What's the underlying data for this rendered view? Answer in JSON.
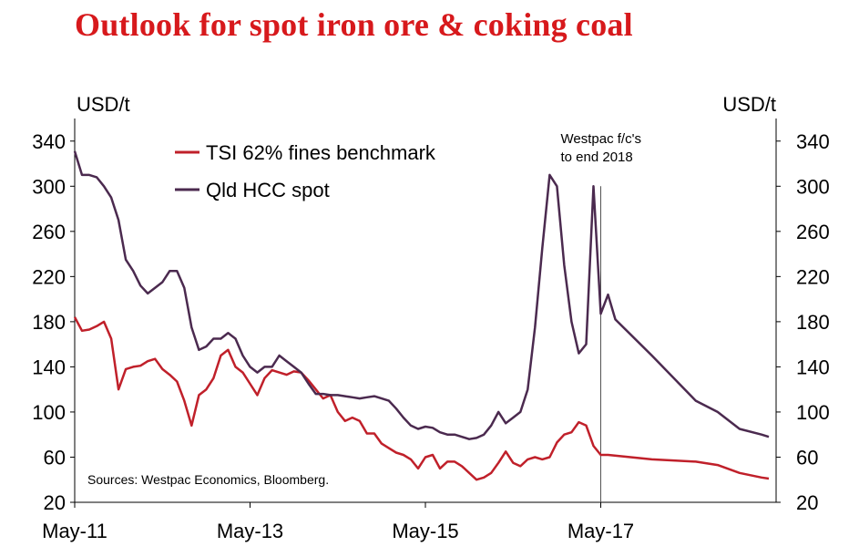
{
  "title": "Outlook for spot iron ore & coking coal",
  "chart_data": {
    "type": "line",
    "title": "Outlook for spot iron ore & coking coal",
    "y_left_label": "USD/t",
    "y_right_label": "USD/t",
    "ylim": [
      20,
      360
    ],
    "yticks": [
      "340",
      "300",
      "260",
      "220",
      "180",
      "140",
      "100",
      "60",
      "20"
    ],
    "xlim": [
      "2011-05",
      "2019-05"
    ],
    "xticks": [
      "May-11",
      "May-13",
      "May-15",
      "May-17"
    ],
    "grid": false,
    "legend_position": "top-left",
    "annotation": {
      "text_lines": [
        "Westpac f/c's",
        "to end 2018"
      ],
      "x": "2017-05"
    },
    "source": "Sources: Westpac Economics, Bloomberg.",
    "series": [
      {
        "name": "TSI 62% fines benchmark",
        "color": "#c0202a",
        "points": [
          [
            "2011-05",
            184
          ],
          [
            "2011-06",
            172
          ],
          [
            "2011-07",
            173
          ],
          [
            "2011-08",
            176
          ],
          [
            "2011-09",
            180
          ],
          [
            "2011-10",
            165
          ],
          [
            "2011-11",
            120
          ],
          [
            "2011-12",
            138
          ],
          [
            "2012-01",
            140
          ],
          [
            "2012-02",
            141
          ],
          [
            "2012-03",
            145
          ],
          [
            "2012-04",
            147
          ],
          [
            "2012-05",
            138
          ],
          [
            "2012-06",
            133
          ],
          [
            "2012-07",
            127
          ],
          [
            "2012-08",
            110
          ],
          [
            "2012-09",
            88
          ],
          [
            "2012-10",
            115
          ],
          [
            "2012-11",
            120
          ],
          [
            "2012-12",
            130
          ],
          [
            "2013-01",
            150
          ],
          [
            "2013-02",
            155
          ],
          [
            "2013-03",
            140
          ],
          [
            "2013-04",
            135
          ],
          [
            "2013-05",
            125
          ],
          [
            "2013-06",
            115
          ],
          [
            "2013-07",
            130
          ],
          [
            "2013-08",
            137
          ],
          [
            "2013-09",
            135
          ],
          [
            "2013-10",
            133
          ],
          [
            "2013-11",
            136
          ],
          [
            "2013-12",
            135
          ],
          [
            "2014-01",
            128
          ],
          [
            "2014-02",
            120
          ],
          [
            "2014-03",
            112
          ],
          [
            "2014-04",
            115
          ],
          [
            "2014-05",
            100
          ],
          [
            "2014-06",
            92
          ],
          [
            "2014-07",
            95
          ],
          [
            "2014-08",
            92
          ],
          [
            "2014-09",
            81
          ],
          [
            "2014-10",
            81
          ],
          [
            "2014-11",
            72
          ],
          [
            "2014-12",
            68
          ],
          [
            "2015-01",
            64
          ],
          [
            "2015-02",
            62
          ],
          [
            "2015-03",
            58
          ],
          [
            "2015-04",
            50
          ],
          [
            "2015-05",
            60
          ],
          [
            "2015-06",
            62
          ],
          [
            "2015-07",
            50
          ],
          [
            "2015-08",
            56
          ],
          [
            "2015-09",
            56
          ],
          [
            "2015-10",
            52
          ],
          [
            "2015-11",
            46
          ],
          [
            "2015-12",
            40
          ],
          [
            "2016-01",
            42
          ],
          [
            "2016-02",
            46
          ],
          [
            "2016-03",
            55
          ],
          [
            "2016-04",
            65
          ],
          [
            "2016-05",
            55
          ],
          [
            "2016-06",
            52
          ],
          [
            "2016-07",
            58
          ],
          [
            "2016-08",
            60
          ],
          [
            "2016-09",
            58
          ],
          [
            "2016-10",
            60
          ],
          [
            "2016-11",
            73
          ],
          [
            "2016-12",
            80
          ],
          [
            "2017-01",
            82
          ],
          [
            "2017-02",
            91
          ],
          [
            "2017-03",
            88
          ],
          [
            "2017-04",
            70
          ],
          [
            "2017-05",
            62
          ],
          [
            "2017-06",
            62
          ],
          [
            "2017-12",
            58
          ],
          [
            "2018-06",
            56
          ],
          [
            "2018-09",
            53
          ],
          [
            "2018-12",
            46
          ],
          [
            "2019-03",
            42
          ],
          [
            "2019-04",
            41
          ]
        ]
      },
      {
        "name": "Qld HCC spot",
        "color": "#4b2a4f",
        "points": [
          [
            "2011-05",
            331
          ],
          [
            "2011-06",
            310
          ],
          [
            "2011-07",
            310
          ],
          [
            "2011-08",
            308
          ],
          [
            "2011-09",
            300
          ],
          [
            "2011-10",
            290
          ],
          [
            "2011-11",
            270
          ],
          [
            "2011-12",
            235
          ],
          [
            "2012-01",
            225
          ],
          [
            "2012-02",
            212
          ],
          [
            "2012-03",
            205
          ],
          [
            "2012-04",
            210
          ],
          [
            "2012-05",
            215
          ],
          [
            "2012-06",
            225
          ],
          [
            "2012-07",
            225
          ],
          [
            "2012-08",
            210
          ],
          [
            "2012-09",
            175
          ],
          [
            "2012-10",
            155
          ],
          [
            "2012-11",
            158
          ],
          [
            "2012-12",
            165
          ],
          [
            "2013-01",
            165
          ],
          [
            "2013-02",
            170
          ],
          [
            "2013-03",
            165
          ],
          [
            "2013-04",
            150
          ],
          [
            "2013-05",
            140
          ],
          [
            "2013-06",
            135
          ],
          [
            "2013-07",
            140
          ],
          [
            "2013-08",
            140
          ],
          [
            "2013-09",
            150
          ],
          [
            "2013-10",
            145
          ],
          [
            "2013-11",
            140
          ],
          [
            "2013-12",
            135
          ],
          [
            "2014-01",
            125
          ],
          [
            "2014-02",
            116
          ],
          [
            "2014-03",
            116
          ],
          [
            "2014-04",
            115
          ],
          [
            "2014-05",
            115
          ],
          [
            "2014-06",
            114
          ],
          [
            "2014-07",
            113
          ],
          [
            "2014-08",
            112
          ],
          [
            "2014-09",
            113
          ],
          [
            "2014-10",
            114
          ],
          [
            "2014-11",
            112
          ],
          [
            "2014-12",
            110
          ],
          [
            "2015-01",
            103
          ],
          [
            "2015-02",
            95
          ],
          [
            "2015-03",
            88
          ],
          [
            "2015-04",
            85
          ],
          [
            "2015-05",
            87
          ],
          [
            "2015-06",
            86
          ],
          [
            "2015-07",
            82
          ],
          [
            "2015-08",
            80
          ],
          [
            "2015-09",
            80
          ],
          [
            "2015-10",
            78
          ],
          [
            "2015-11",
            76
          ],
          [
            "2015-12",
            77
          ],
          [
            "2016-01",
            80
          ],
          [
            "2016-02",
            88
          ],
          [
            "2016-03",
            100
          ],
          [
            "2016-04",
            90
          ],
          [
            "2016-05",
            95
          ],
          [
            "2016-06",
            100
          ],
          [
            "2016-07",
            120
          ],
          [
            "2016-08",
            175
          ],
          [
            "2016-09",
            245
          ],
          [
            "2016-10",
            310
          ],
          [
            "2016-11",
            300
          ],
          [
            "2016-12",
            230
          ],
          [
            "2017-01",
            180
          ],
          [
            "2017-02",
            152
          ],
          [
            "2017-03",
            160
          ],
          [
            "2017-04",
            300
          ],
          [
            "2017-05",
            187
          ],
          [
            "2017-06",
            204
          ],
          [
            "2017-07",
            182
          ],
          [
            "2017-12",
            150
          ],
          [
            "2018-06",
            110
          ],
          [
            "2018-09",
            100
          ],
          [
            "2018-12",
            85
          ],
          [
            "2019-03",
            80
          ],
          [
            "2019-04",
            78
          ]
        ]
      }
    ]
  }
}
